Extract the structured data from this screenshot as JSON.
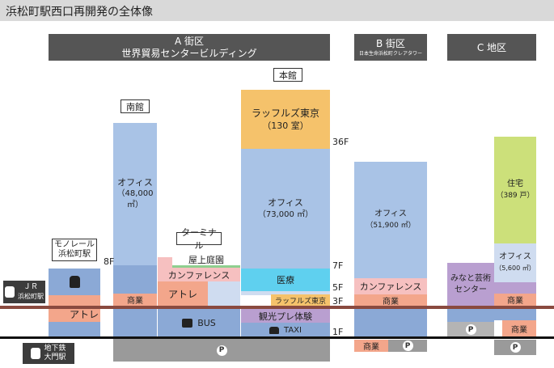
{
  "title": "浜松町駅西口再開発の全体像",
  "headers": {
    "a_line1": "A 街区",
    "a_line2": "世界貿易センタービルディング",
    "b_line1": "B 街区",
    "b_line2": "日本生命浜松町クレアタワー",
    "c_line1": "C 地区"
  },
  "labels": {
    "honkan": "本館",
    "nankan": "南館",
    "terminal": "ターミナル",
    "monorail_line1": "モノレール",
    "monorail_line2": "浜松町駅"
  },
  "floors": {
    "f36": "36F",
    "f8": "8F",
    "f7": "7F",
    "f5": "5F",
    "f3": "3F",
    "f1": "1F"
  },
  "stations": {
    "jr_line1": "ＪＲ",
    "jr_line2": "浜松町駅",
    "subway_line1": "地下鉄",
    "subway_line2": "大門駅"
  },
  "parking": "P",
  "honkan": {
    "hotel_line1": "ラッフルズ東京",
    "hotel_line2": "（130 室）",
    "office_line1": "オフィス",
    "office_line2": "（73,000 ㎡）",
    "medical": "医療",
    "raffles": "ラッフルズ東京",
    "sightseeing": "観光プレ体験",
    "taxi": "TAXI"
  },
  "nankan": {
    "office_line1": "オフィス",
    "office_line2": "（48,000 ㎡）",
    "shops": "商業"
  },
  "terminal": {
    "rooftop": "屋上庭園",
    "conference": "カンファレンス",
    "atre": "アトレ",
    "bus": "BUS"
  },
  "monorail": {
    "atre": "アトレ"
  },
  "tower_b": {
    "office_line1": "オフィス",
    "office_line2": "（51,900 ㎡）",
    "conference": "カンファレンス",
    "shops": "商業",
    "shops_b1": "商業"
  },
  "c_area": {
    "housing_line1": "住宅",
    "housing_line2": "（389 戸）",
    "office_line1": "オフィス",
    "office_line2": "（5,600 ㎡）",
    "arts_line1": "みなと芸術",
    "arts_line2": "センター",
    "shops": "商業",
    "shops_b1": "商業"
  },
  "colors": {
    "header": "#555555",
    "office": "#a9c3e6",
    "hotel": "#f5c26b",
    "medical": "#5fd0ef",
    "housing": "#cce07a",
    "commercial": "#f3a68b",
    "ground_line": "#8a4a3f",
    "underground": "#9e9e9e"
  }
}
